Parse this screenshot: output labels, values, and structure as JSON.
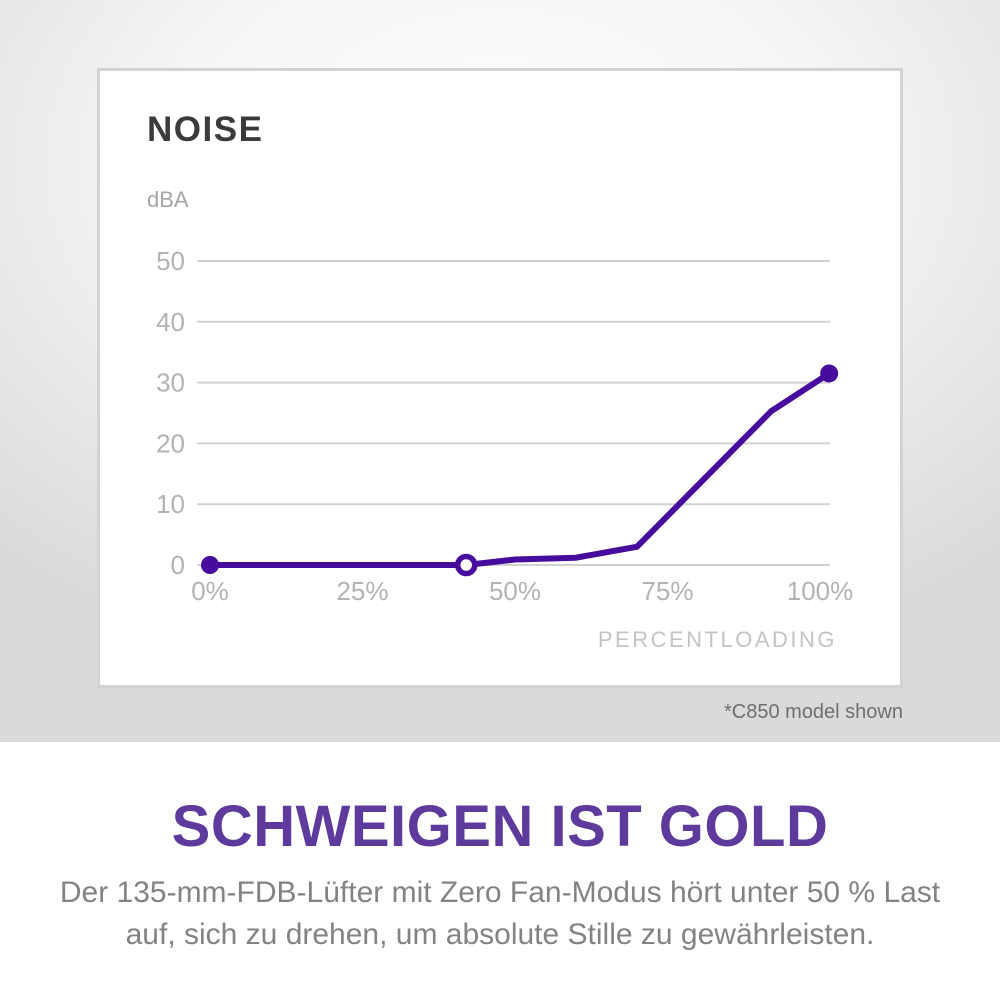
{
  "colors": {
    "accent_line": "#470c9e",
    "headline_purple": "#5d3a9b",
    "grid": "#d2d2d2",
    "tick_label": "#b3b3b3",
    "chart_title": "#3b3b3b"
  },
  "chart": {
    "title": "NOISE",
    "ylabel": "dBA",
    "xlabel": "PERCENTLOADING"
  },
  "footnote": "*C850 model shown",
  "copy": {
    "headline": "SCHWEIGEN IST GOLD",
    "body_line1": "Der 135-mm-FDB-Lüfter mit Zero Fan-Modus hört unter 50 % Last",
    "body_line2": "auf, sich zu drehen, um absolute Stille zu gewährleisten."
  },
  "chart_data": {
    "type": "line",
    "title": "NOISE",
    "ylabel": "dBA",
    "xlabel": "PERCENTLOADING",
    "yticks": [
      50,
      40,
      30,
      20,
      10,
      0
    ],
    "xtick_labels": [
      "0%",
      "25%",
      "50%",
      "75%",
      "100%"
    ],
    "xtick_values": [
      0,
      25,
      50,
      75,
      100
    ],
    "ylim": [
      0,
      50
    ],
    "xlim": [
      0,
      101.5
    ],
    "grid": "horizontal-only",
    "legend": "none",
    "line_color": "#470c9e",
    "grid_color": "#d2d2d2",
    "points": [
      {
        "load_pct": 0,
        "dba": 0,
        "marker": "filled"
      },
      {
        "load_pct": 42,
        "dba": 0,
        "marker": "open"
      },
      {
        "load_pct": 50,
        "dba": 0.9
      },
      {
        "load_pct": 60,
        "dba": 1.2
      },
      {
        "load_pct": 70,
        "dba": 3
      },
      {
        "load_pct": 92,
        "dba": 25.3
      },
      {
        "load_pct": 101.5,
        "dba": 31.5,
        "marker": "filled"
      }
    ]
  }
}
